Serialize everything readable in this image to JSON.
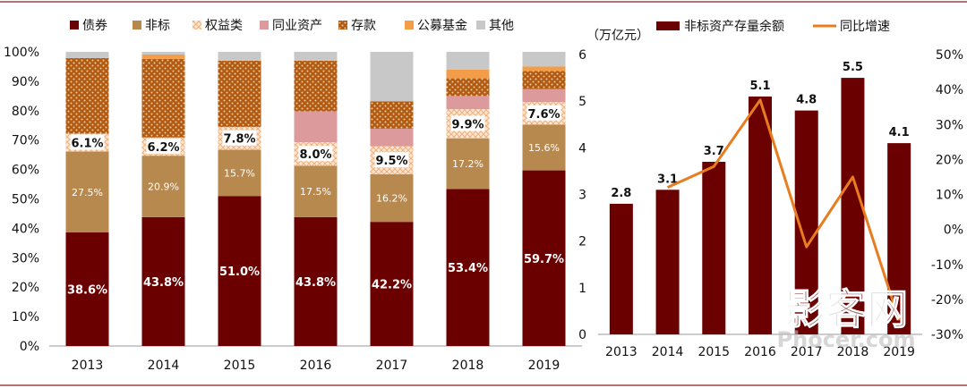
{
  "chart_data": [
    {
      "type": "bar",
      "stacked": true,
      "percent_stacked": true,
      "categories": [
        "2013",
        "2014",
        "2015",
        "2016",
        "2017",
        "2018",
        "2019"
      ],
      "legend": [
        "债券",
        "非标",
        "权益类",
        "同业资产",
        "存款",
        "公募基金",
        "其他"
      ],
      "legend_position": "top",
      "y_ticks": [
        "0%",
        "10%",
        "20%",
        "30%",
        "40%",
        "50%",
        "60%",
        "70%",
        "80%",
        "90%",
        "100%"
      ],
      "ylim": [
        0,
        100
      ],
      "series": [
        {
          "name": "债券",
          "values": [
            38.6,
            43.8,
            51.0,
            43.8,
            42.2,
            53.4,
            59.7
          ],
          "labels": [
            "38.6%",
            "43.8%",
            "51.0%",
            "43.8%",
            "42.2%",
            "53.4%",
            "59.7%"
          ],
          "color": "#6b0000"
        },
        {
          "name": "非标",
          "values": [
            27.5,
            20.9,
            15.7,
            17.5,
            16.2,
            17.2,
            15.6
          ],
          "labels": [
            "27.5%",
            "20.9%",
            "15.7%",
            "17.5%",
            "16.2%",
            "17.2%",
            "15.6%"
          ],
          "color": "#b8894f"
        },
        {
          "name": "权益类",
          "values": [
            6.1,
            6.2,
            7.8,
            8.0,
            9.5,
            9.9,
            7.6
          ],
          "labels": [
            "6.1%",
            "6.2%",
            "7.8%",
            "8.0%",
            "9.5%",
            "9.9%",
            "7.6%"
          ],
          "color": "#f3c9a8"
        },
        {
          "name": "同业资产",
          "values": [
            0,
            0,
            0,
            10.5,
            6,
            4.5,
            4.5
          ],
          "color": "#dc9a9c"
        },
        {
          "name": "存款",
          "values": [
            25.7,
            26.7,
            22.5,
            17.2,
            9.3,
            6.0,
            6.1
          ],
          "color": "#b05a12"
        },
        {
          "name": "公募基金",
          "values": [
            0,
            1.5,
            0,
            0,
            0,
            3,
            1.5
          ],
          "color": "#f49d49"
        },
        {
          "name": "其他",
          "values": [
            2.1,
            0.9,
            3.0,
            3.0,
            16.8,
            6.0,
            5.0
          ],
          "color": "#c8c8c8"
        }
      ],
      "grid": false
    },
    {
      "type": "bar+line",
      "categories": [
        "2013",
        "2014",
        "2015",
        "2016",
        "2017",
        "2018",
        "2019"
      ],
      "unit_label": "（万亿元）",
      "legend_position": "top",
      "bar_series": {
        "name": "非标资产存量余额",
        "values": [
          2.8,
          3.1,
          3.7,
          5.1,
          4.8,
          5.5,
          4.1
        ],
        "labels": [
          "2.8",
          "3.1",
          "3.7",
          "5.1",
          "4.8",
          "5.5",
          "4.1"
        ],
        "color": "#6b0000"
      },
      "line_series": {
        "name": "同比增速",
        "values": [
          null,
          12,
          18,
          37,
          -5,
          15,
          -26
        ],
        "color": "#e87c1e"
      },
      "ylim_left": [
        0,
        6
      ],
      "y_ticks_left": [
        "0",
        "1",
        "2",
        "3",
        "4",
        "5",
        "6"
      ],
      "ylim_right": [
        -30,
        50
      ],
      "y_ticks_right": [
        "-30%",
        "-20%",
        "-10%",
        "0%",
        "10%",
        "20%",
        "30%",
        "40%",
        "50%"
      ],
      "grid": false
    }
  ],
  "watermark": {
    "text": "影客网",
    "sub": "Phocer.com"
  }
}
